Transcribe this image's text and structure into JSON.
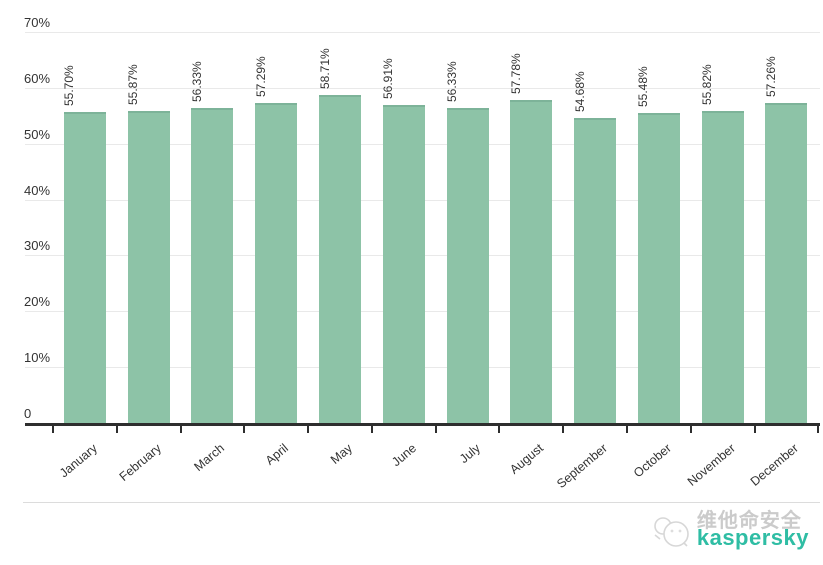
{
  "chart_data": {
    "type": "bar",
    "title": "",
    "xlabel": "",
    "ylabel": "",
    "categories": [
      "January",
      "February",
      "March",
      "April",
      "May",
      "June",
      "July",
      "August",
      "September",
      "October",
      "November",
      "December"
    ],
    "values": [
      55.7,
      55.87,
      56.33,
      57.29,
      58.71,
      56.91,
      56.33,
      57.78,
      54.68,
      55.48,
      55.82,
      57.26
    ],
    "value_labels": [
      "55.70%",
      "55.87%",
      "56.33%",
      "57.29%",
      "58.71%",
      "56.91%",
      "56.33%",
      "57.78%",
      "54.68%",
      "55.48%",
      "55.82%",
      "57.26%"
    ],
    "ylim": [
      0,
      70
    ],
    "yticks": [
      0,
      10,
      20,
      30,
      40,
      50,
      60,
      70
    ],
    "ytick_labels": [
      "0",
      "10%",
      "20%",
      "30%",
      "40%",
      "50%",
      "60%",
      "70%"
    ],
    "grid": true,
    "legend": "none",
    "bar_color": "#8dc3a7",
    "bar_top_color": "#7db399",
    "axis_color": "#2e2e2e",
    "grid_color": "#e9e9e9",
    "label_color": "#333333"
  },
  "watermark": {
    "brand_cn": "维他命安全",
    "brand_en": "kaspersky",
    "brand_en_color": "#2fbda4",
    "brand_cn_color": "#cbcbcb",
    "logo_icon": "panda-circle-outline-icon"
  }
}
